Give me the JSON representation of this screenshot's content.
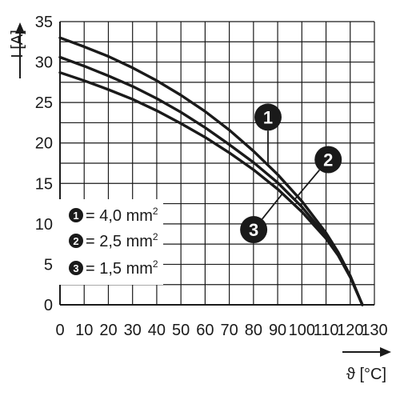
{
  "chart_data": {
    "type": "line",
    "ylabel": "I [A]",
    "xlabel": "ϑ [°C]",
    "xlim": [
      0,
      130
    ],
    "ylim": [
      0,
      35
    ],
    "x_ticks": [
      "0",
      "10",
      "20",
      "30",
      "40",
      "50",
      "60",
      "70",
      "80",
      "90",
      "100",
      "110",
      "120",
      "130"
    ],
    "y_ticks": [
      "0",
      "5",
      "10",
      "15",
      "20",
      "25",
      "30",
      "35"
    ],
    "grid": true,
    "legend_position": "bottom-left",
    "series": [
      {
        "name": "4,0 mm²",
        "marker": "1",
        "legend_label": "= 4,0 mm",
        "legend_sup": "2",
        "x": [
          0,
          10,
          20,
          30,
          40,
          50,
          60,
          70,
          80,
          90,
          100,
          110,
          115,
          120,
          125
        ],
        "y": [
          33.0,
          31.9,
          30.7,
          29.3,
          27.7,
          25.9,
          23.9,
          21.6,
          19.0,
          16.1,
          12.8,
          8.9,
          6.5,
          3.6,
          0
        ]
      },
      {
        "name": "2,5 mm²",
        "marker": "2",
        "legend_label": "= 2,5 mm",
        "legend_sup": "2",
        "x": [
          0,
          10,
          20,
          30,
          40,
          50,
          60,
          70,
          80,
          90,
          100,
          110,
          115,
          120,
          125
        ],
        "y": [
          30.6,
          29.5,
          28.3,
          27.0,
          25.5,
          23.8,
          21.9,
          19.8,
          17.6,
          15.1,
          12.1,
          8.5,
          6.3,
          3.5,
          0
        ]
      },
      {
        "name": "1,5 mm²",
        "marker": "3",
        "legend_label": "= 1,5 mm",
        "legend_sup": "2",
        "x": [
          0,
          10,
          20,
          30,
          40,
          50,
          60,
          70,
          80,
          90,
          100,
          110,
          115,
          120,
          125
        ],
        "y": [
          28.7,
          27.7,
          26.6,
          25.4,
          24.0,
          22.4,
          20.7,
          18.8,
          16.7,
          14.3,
          11.5,
          8.2,
          6.1,
          3.4,
          0
        ]
      }
    ],
    "annotations": [
      {
        "marker": "1",
        "series": 0,
        "x": 86
      },
      {
        "marker": "2",
        "series": 1,
        "x": 97
      },
      {
        "marker": "3",
        "series": 2,
        "x": 92
      }
    ],
    "colors": {
      "line": "#1a1a1a",
      "grid": "#1a1a1a",
      "badge": "#1a1a1a"
    }
  }
}
